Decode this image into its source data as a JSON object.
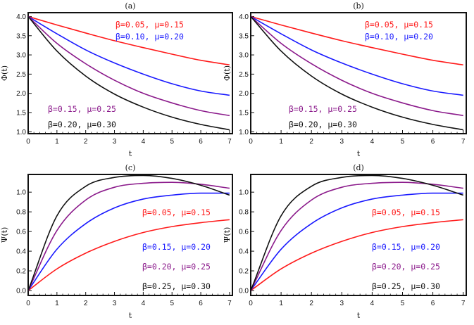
{
  "chart_data": [
    {
      "type": "line",
      "title": "(a)",
      "xlabel": "t",
      "ylabel": "Φ(t)",
      "xlim": [
        0,
        7.1
      ],
      "ylim": [
        0.95,
        4.1
      ],
      "xticks": [
        "0",
        "1",
        "2",
        "3",
        "4",
        "5",
        "6",
        "7"
      ],
      "yticks": [
        "1.0",
        "1.5",
        "2.0",
        "2.5",
        "3.0",
        "3.5",
        "4.0"
      ],
      "series": [
        {
          "name": "β=0.05, μ=0.15",
          "color": "#ff1a1a",
          "x": [
            0,
            1,
            2,
            3,
            4,
            5,
            6,
            7
          ],
          "y": [
            4.0,
            3.78,
            3.57,
            3.37,
            3.19,
            3.02,
            2.86,
            2.74
          ]
        },
        {
          "name": "β=0.10, μ=0.20",
          "color": "#1a1aff",
          "x": [
            0,
            1,
            2,
            3,
            4,
            5,
            6,
            7
          ],
          "y": [
            4.0,
            3.55,
            3.13,
            2.79,
            2.5,
            2.25,
            2.06,
            1.95
          ]
        },
        {
          "name": "β=0.15, μ=0.25",
          "color": "#8b1a8b",
          "x": [
            0,
            1,
            2,
            3,
            4,
            5,
            6,
            7
          ],
          "y": [
            4.0,
            3.3,
            2.77,
            2.34,
            2.0,
            1.75,
            1.55,
            1.42
          ]
        },
        {
          "name": "β=0.20, μ=0.30",
          "color": "#111111",
          "x": [
            0,
            1,
            2,
            3,
            4,
            5,
            6,
            7
          ],
          "y": [
            4.0,
            3.1,
            2.45,
            1.98,
            1.64,
            1.38,
            1.19,
            1.05
          ]
        }
      ],
      "legend": [
        {
          "text": "β=0.05,  μ=0.15",
          "color": "#ff1a1a",
          "place": "top-right"
        },
        {
          "text": "β=0.10,  μ=0.20",
          "color": "#1a1aff",
          "place": "top-right"
        },
        {
          "text": "β=0.15,  μ=0.25",
          "color": "#8b1a8b",
          "place": "bottom-left"
        },
        {
          "text": "β=0.20,  μ=0.30",
          "color": "#111111",
          "place": "bottom-left"
        }
      ]
    },
    {
      "type": "line",
      "title": "(b)",
      "xlabel": "t",
      "ylabel": "Φ(t)",
      "xlim": [
        0,
        7.1
      ],
      "ylim": [
        0.95,
        4.1
      ],
      "xticks": [
        "0",
        "1",
        "2",
        "3",
        "4",
        "5",
        "6",
        "7"
      ],
      "yticks": [
        "1.0",
        "1.5",
        "2.0",
        "2.5",
        "3.0",
        "3.5",
        "4.0"
      ],
      "series": [
        {
          "name": "β=0.05, μ=0.15",
          "color": "#ff1a1a",
          "x": [
            0,
            1,
            2,
            3,
            4,
            5,
            6,
            7
          ],
          "y": [
            4.0,
            3.78,
            3.57,
            3.37,
            3.19,
            3.02,
            2.86,
            2.74
          ]
        },
        {
          "name": "β=0.10, μ=0.20",
          "color": "#1a1aff",
          "x": [
            0,
            1,
            2,
            3,
            4,
            5,
            6,
            7
          ],
          "y": [
            4.0,
            3.55,
            3.13,
            2.79,
            2.5,
            2.25,
            2.06,
            1.95
          ]
        },
        {
          "name": "β=0.15, μ=0.25",
          "color": "#8b1a8b",
          "x": [
            0,
            1,
            2,
            3,
            4,
            5,
            6,
            7
          ],
          "y": [
            4.0,
            3.3,
            2.77,
            2.34,
            2.0,
            1.75,
            1.55,
            1.42
          ]
        },
        {
          "name": "β=0.20, μ=0.30",
          "color": "#111111",
          "x": [
            0,
            1,
            2,
            3,
            4,
            5,
            6,
            7
          ],
          "y": [
            4.0,
            3.1,
            2.45,
            1.98,
            1.64,
            1.38,
            1.19,
            1.05
          ]
        }
      ],
      "legend": [
        {
          "text": "β=0.05,  μ=0.15",
          "color": "#ff1a1a",
          "place": "top-right"
        },
        {
          "text": "β=0.10,  μ=0.20",
          "color": "#1a1aff",
          "place": "top-right"
        },
        {
          "text": "β=0.15,  μ=0.25",
          "color": "#8b1a8b",
          "place": "bottom-left"
        },
        {
          "text": "β=0.20,  μ=0.30",
          "color": "#111111",
          "place": "bottom-left"
        }
      ]
    },
    {
      "type": "line",
      "title": "(c)",
      "xlabel": "t",
      "ylabel": "Ψ(t)",
      "xlim": [
        0,
        7.1
      ],
      "ylim": [
        -0.05,
        1.18
      ],
      "xticks": [
        "0",
        "1",
        "2",
        "3",
        "4",
        "5",
        "6",
        "7"
      ],
      "yticks": [
        "0.0",
        "0.2",
        "0.4",
        "0.6",
        "0.8",
        "1.0"
      ],
      "series": [
        {
          "name": "β=0.05, μ=0.15",
          "color": "#ff1a1a",
          "x": [
            0,
            1,
            2,
            3,
            4,
            5,
            6,
            7
          ],
          "y": [
            0,
            0.22,
            0.38,
            0.5,
            0.59,
            0.65,
            0.69,
            0.72
          ]
        },
        {
          "name": "β=0.15, μ=0.20",
          "color": "#1a1aff",
          "x": [
            0,
            1,
            2,
            3,
            4,
            5,
            6,
            7
          ],
          "y": [
            0,
            0.42,
            0.68,
            0.84,
            0.93,
            0.97,
            0.99,
            0.99
          ]
        },
        {
          "name": "β=0.20, μ=0.25",
          "color": "#8b1a8b",
          "x": [
            0,
            1,
            2,
            3,
            4,
            5,
            6,
            7
          ],
          "y": [
            0,
            0.61,
            0.92,
            1.05,
            1.09,
            1.1,
            1.08,
            1.04
          ]
        },
        {
          "name": "β=0.25, μ=0.30",
          "color": "#111111",
          "x": [
            0,
            1,
            2,
            3,
            4,
            5,
            6,
            7
          ],
          "y": [
            0,
            0.76,
            1.06,
            1.15,
            1.17,
            1.14,
            1.07,
            0.97
          ]
        }
      ],
      "legend": [
        {
          "text": "β=0.05,  μ=0.15",
          "color": "#ff1a1a",
          "place": "right"
        },
        {
          "text": "β=0.15,  μ=0.20",
          "color": "#1a1aff",
          "place": "right"
        },
        {
          "text": "β=0.20,  μ=0.25",
          "color": "#8b1a8b",
          "place": "right"
        },
        {
          "text": "β=0.25,  μ=0.30",
          "color": "#111111",
          "place": "right"
        }
      ]
    },
    {
      "type": "line",
      "title": "(d)",
      "xlabel": "t",
      "ylabel": "Ψ(t)",
      "xlim": [
        0,
        7.1
      ],
      "ylim": [
        -0.05,
        1.18
      ],
      "xticks": [
        "0",
        "1",
        "2",
        "3",
        "4",
        "5",
        "6",
        "7"
      ],
      "yticks": [
        "0.0",
        "0.2",
        "0.4",
        "0.6",
        "0.8",
        "1.0"
      ],
      "series": [
        {
          "name": "β=0.05, μ=0.15",
          "color": "#ff1a1a",
          "x": [
            0,
            1,
            2,
            3,
            4,
            5,
            6,
            7
          ],
          "y": [
            0,
            0.22,
            0.38,
            0.5,
            0.59,
            0.65,
            0.69,
            0.72
          ]
        },
        {
          "name": "β=0.15, μ=0.20",
          "color": "#1a1aff",
          "x": [
            0,
            1,
            2,
            3,
            4,
            5,
            6,
            7
          ],
          "y": [
            0,
            0.42,
            0.68,
            0.84,
            0.93,
            0.97,
            0.99,
            0.99
          ]
        },
        {
          "name": "β=0.20, μ=0.25",
          "color": "#8b1a8b",
          "x": [
            0,
            1,
            2,
            3,
            4,
            5,
            6,
            7
          ],
          "y": [
            0,
            0.61,
            0.92,
            1.05,
            1.09,
            1.1,
            1.08,
            1.04
          ]
        },
        {
          "name": "β=0.25, μ=0.30",
          "color": "#111111",
          "x": [
            0,
            1,
            2,
            3,
            4,
            5,
            6,
            7
          ],
          "y": [
            0,
            0.76,
            1.06,
            1.15,
            1.17,
            1.14,
            1.07,
            0.97
          ]
        }
      ],
      "legend": [
        {
          "text": "β=0.05,  μ=0.15",
          "color": "#ff1a1a",
          "place": "right"
        },
        {
          "text": "β=0.15,  μ=0.20",
          "color": "#1a1aff",
          "place": "right"
        },
        {
          "text": "β=0.20,  μ=0.25",
          "color": "#8b1a8b",
          "place": "right"
        },
        {
          "text": "β=0.25,  μ=0.30",
          "color": "#111111",
          "place": "right"
        }
      ]
    }
  ]
}
